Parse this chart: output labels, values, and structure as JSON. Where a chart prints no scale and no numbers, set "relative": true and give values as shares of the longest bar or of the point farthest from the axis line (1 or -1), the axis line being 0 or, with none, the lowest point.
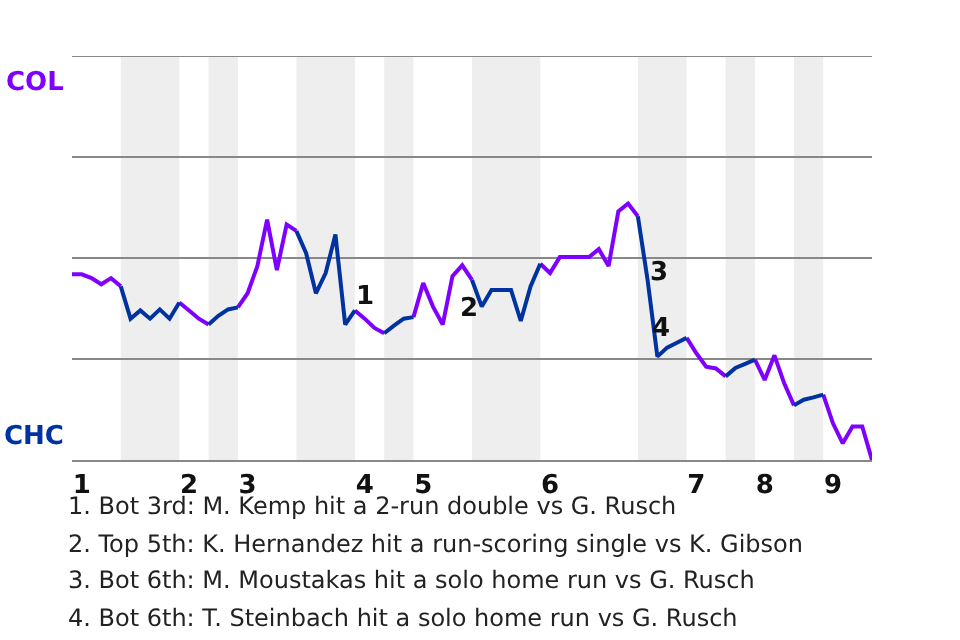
{
  "chart_data": {
    "type": "line",
    "relative": true,
    "categories": [
      null,
      "1",
      null,
      null,
      null,
      null,
      null,
      null,
      null,
      null,
      null,
      null,
      "2",
      null,
      null,
      null,
      null,
      null,
      "3",
      null,
      null,
      null,
      null,
      null,
      null,
      null,
      null,
      null,
      null,
      null,
      "4",
      null,
      null,
      null,
      null,
      null,
      "5",
      null,
      null,
      null,
      null,
      null,
      null,
      null,
      null,
      null,
      null,
      null,
      null,
      "6",
      null,
      null,
      null,
      null,
      null,
      null,
      null,
      null,
      null,
      null,
      null,
      null,
      null,
      null,
      "7",
      null,
      null,
      null,
      null,
      null,
      null,
      "8",
      null,
      null,
      null,
      null,
      null,
      null,
      "9",
      null,
      null,
      null,
      null
    ],
    "series": [
      {
        "color": "#7f00ff",
        "values": [
          0.724,
          0.724,
          0.709,
          0.685,
          0.709,
          0.677,
          null,
          null,
          null,
          null,
          null,
          0.614,
          0.583,
          0.551,
          0.528,
          null,
          null,
          0.595,
          0.65,
          0.756,
          0.937,
          0.74,
          0.918,
          0.893,
          null,
          null,
          null,
          null,
          null,
          0.583,
          0.551,
          0.515,
          0.494,
          null,
          null,
          0.557,
          0.69,
          0.598,
          0.528,
          0.717,
          0.759,
          0.702,
          null,
          null,
          null,
          null,
          null,
          null,
          0.765,
          0.729,
          0.791,
          0.791,
          0.791,
          0.791,
          0.822,
          0.756,
          0.969,
          1,
          0.95,
          null,
          null,
          null,
          null,
          0.476,
          0.416,
          0.364,
          0.357,
          0.326,
          null,
          null,
          0.391,
          0.312,
          0.408,
          0.299,
          0.213,
          null,
          null,
          0.255,
          0.143,
          0.065,
          0.131,
          0.131,
          0
        ]
      },
      {
        "color": "#0033a0",
        "values": [
          null,
          null,
          null,
          null,
          null,
          0.677,
          0.551,
          0.583,
          0.551,
          0.587,
          0.551,
          0.614,
          null,
          null,
          0.528,
          0.562,
          0.587,
          0.595,
          null,
          null,
          null,
          null,
          null,
          0.893,
          0.806,
          0.65,
          0.729,
          0.879,
          0.528,
          0.583,
          null,
          null,
          0.494,
          0.524,
          0.551,
          0.557,
          null,
          null,
          null,
          null,
          null,
          0.702,
          0.598,
          0.663,
          0.663,
          0.663,
          0.542,
          0.677,
          0.765,
          null,
          null,
          null,
          null,
          null,
          null,
          null,
          null,
          null,
          0.95,
          0.702,
          0.403,
          0.438,
          0.457,
          0.476,
          null,
          null,
          null,
          0.326,
          0.359,
          0.375,
          0.391,
          null,
          null,
          null,
          0.213,
          0.235,
          0.244,
          0.255,
          null,
          null,
          null,
          null,
          null
        ]
      }
    ],
    "marker": "none",
    "line_style": "solid",
    "ref_lines": [
      {
        "axis": "y",
        "value": 0.394,
        "color": "#888888"
      },
      {
        "axis": "y",
        "value": 0.787,
        "color": "#888888"
      },
      {
        "axis": "y",
        "value": 1.181,
        "color": "#888888"
      },
      {
        "axis": "y",
        "value": 1.575,
        "color": "#888888"
      }
    ],
    "annotations": [
      "COL",
      "CHC",
      {
        "text": "1",
        "y": 0.528
      },
      {
        "text": "2",
        "y": 0.717
      },
      {
        "text": "3",
        "y": 0.403
      },
      {
        "text": "4",
        "y": 0.438
      },
      "1. Bot 3rd: M. Kemp hit a 2-run double vs G. Rusch",
      "2. Top 5th: K. Hernandez hit a run-scoring single vs K. Gibson",
      "3. Bot 6th: M. Moustakas hit a solo home run vs G. Rusch",
      "4. Bot 6th: T. Steinbach hit a solo home run vs G. Rusch"
    ]
  }
}
